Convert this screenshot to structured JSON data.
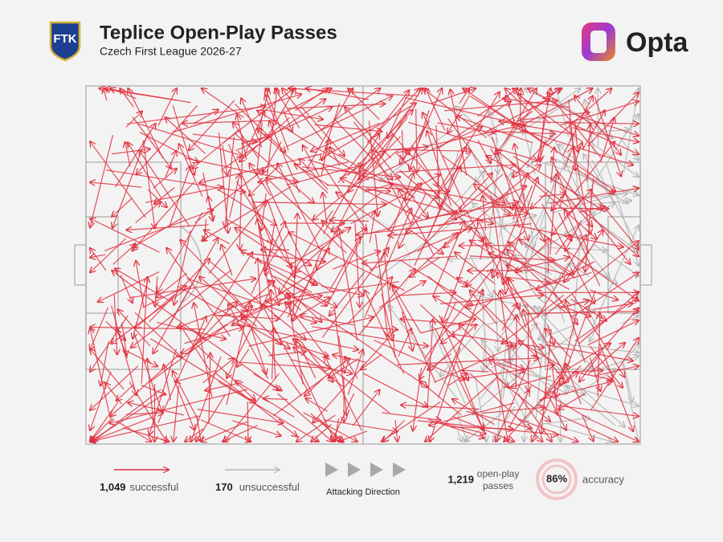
{
  "header": {
    "title": "Teplice Open-Play Passes",
    "subtitle": "Czech First League 2026-27",
    "club_badge": "FTK",
    "brand": "Opta"
  },
  "legend": {
    "successful": {
      "count": "1,049",
      "label": "successful"
    },
    "unsuccessful": {
      "count": "170",
      "label": "unsuccessful"
    },
    "direction": "Attacking Direction",
    "total": {
      "count": "1,219",
      "label": [
        "open-play",
        "passes"
      ]
    },
    "accuracy": {
      "value": "86%",
      "label": "accuracy"
    }
  }
}
